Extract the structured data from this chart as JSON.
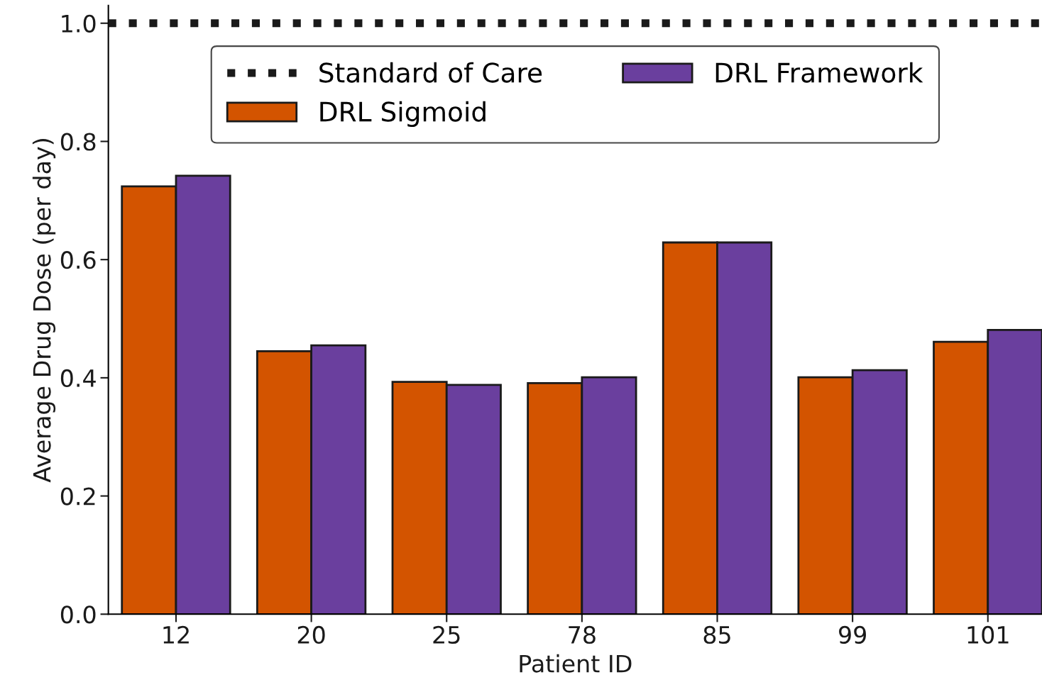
{
  "chart_data": {
    "type": "bar",
    "xlabel": "Patient ID",
    "ylabel": "Average Drug Dose (per day)",
    "categories": [
      "12",
      "20",
      "25",
      "78",
      "85",
      "99",
      "101"
    ],
    "series": [
      {
        "name": "DRL Sigmoid",
        "color": "#d35400",
        "values": [
          0.724,
          0.445,
          0.393,
          0.391,
          0.629,
          0.401,
          0.461
        ]
      },
      {
        "name": "DRL Framework",
        "color": "#6a3f9e",
        "values": [
          0.742,
          0.455,
          0.388,
          0.401,
          0.629,
          0.413,
          0.481
        ]
      }
    ],
    "ref_lines": [
      {
        "axis": "y",
        "value": 1.0,
        "label": "Standard of Care",
        "color": "#1a1a1a",
        "line_style": "dotted"
      }
    ],
    "ylim": [
      0,
      1.03
    ],
    "yticks": [
      {
        "value": 0,
        "label": "0.0"
      },
      0.2,
      0.4,
      0.6,
      0.8,
      {
        "value": 1,
        "label": "1.0"
      }
    ],
    "legend": "top",
    "grid": false
  }
}
